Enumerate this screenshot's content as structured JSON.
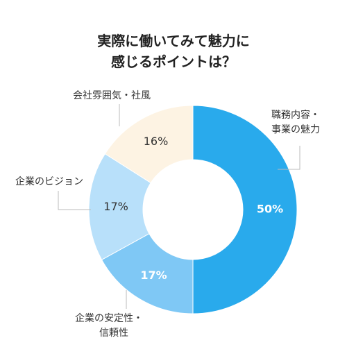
{
  "chart_data": {
    "type": "pie",
    "title": [
      "実際に働いてみて魅力に",
      "感じるポイントは？"
    ],
    "slices": [
      {
        "label": [
          "職務内容・",
          "事業の魅力"
        ],
        "value": 50,
        "display": "50%",
        "color": "#29aaec",
        "text_color": "#ffffff",
        "bold": true
      },
      {
        "label": [
          "企業の安定性・",
          "信頼性"
        ],
        "value": 17,
        "display": "17%",
        "color": "#7fc8f5",
        "text_color": "#ffffff",
        "bold": true
      },
      {
        "label": [
          "企業のビジョン"
        ],
        "value": 17,
        "display": "17%",
        "color": "#b8e0fa",
        "text_color": "#333333",
        "bold": false
      },
      {
        "label": [
          "会社雰囲気・社風"
        ],
        "value": 16,
        "display": "16%",
        "color": "#fdf3e3",
        "text_color": "#333333",
        "bold": false
      }
    ],
    "legend": "none",
    "leader_line_color": "#bbbbbb"
  }
}
